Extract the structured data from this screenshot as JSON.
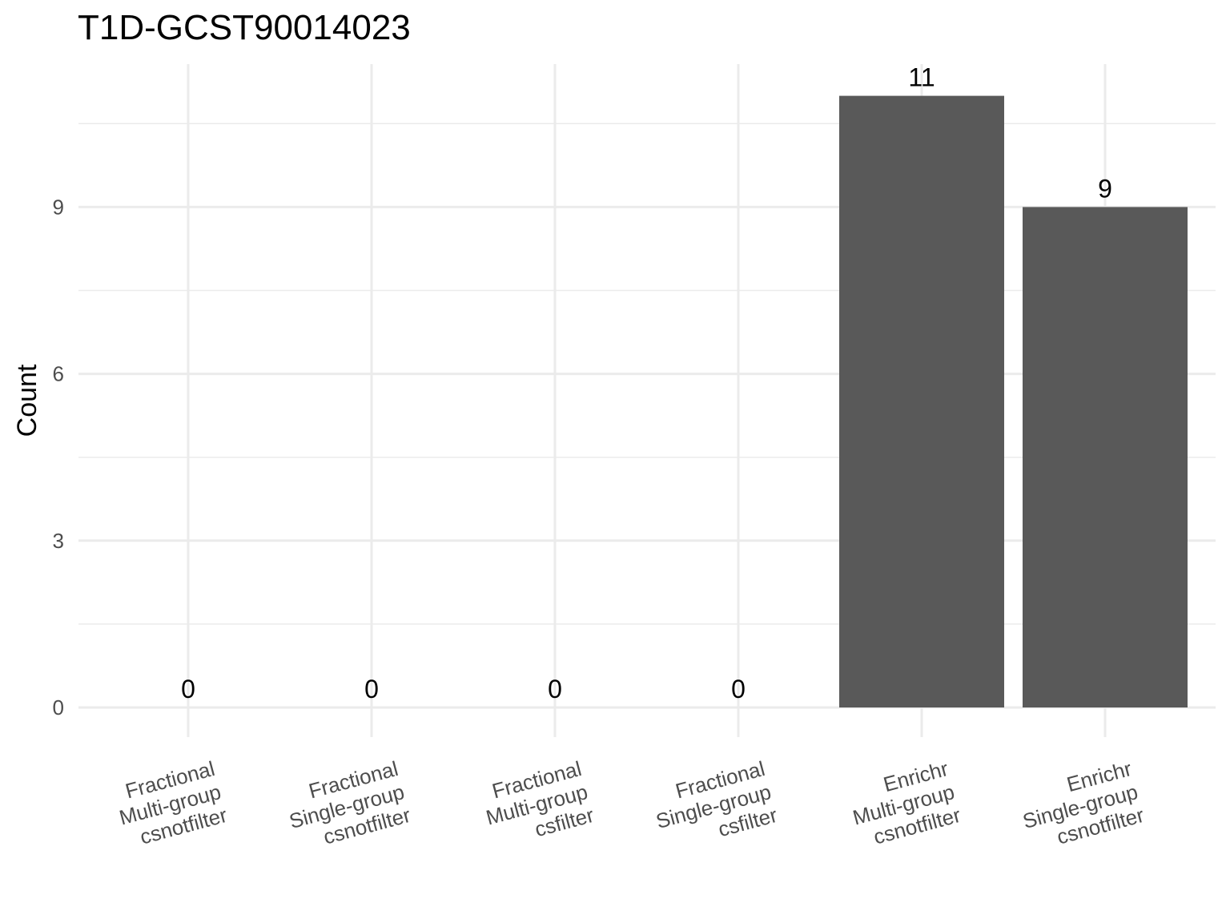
{
  "chart_data": {
    "type": "bar",
    "title": "T1D-GCST90014023",
    "xlabel": "",
    "ylabel": "Count",
    "categories": [
      [
        "Fractional",
        "Multi-group",
        "csnotfilter"
      ],
      [
        "Fractional",
        "Single-group",
        "csnotfilter"
      ],
      [
        "Fractional",
        "Multi-group",
        "csfilter"
      ],
      [
        "Fractional",
        "Single-group",
        "csfilter"
      ],
      [
        "Enrichr",
        "Multi-group",
        "csnotfilter"
      ],
      [
        "Enrichr",
        "Single-group",
        "csnotfilter"
      ]
    ],
    "values": [
      0,
      0,
      0,
      0,
      11,
      9
    ],
    "data_labels": [
      "0",
      "0",
      "0",
      "0",
      "11",
      "9"
    ],
    "yticks": [
      0,
      3,
      6,
      9
    ],
    "ylim": [
      0,
      11.55
    ],
    "grid": true,
    "bar_color": "#595959",
    "grid_color": "#ebebeb"
  }
}
